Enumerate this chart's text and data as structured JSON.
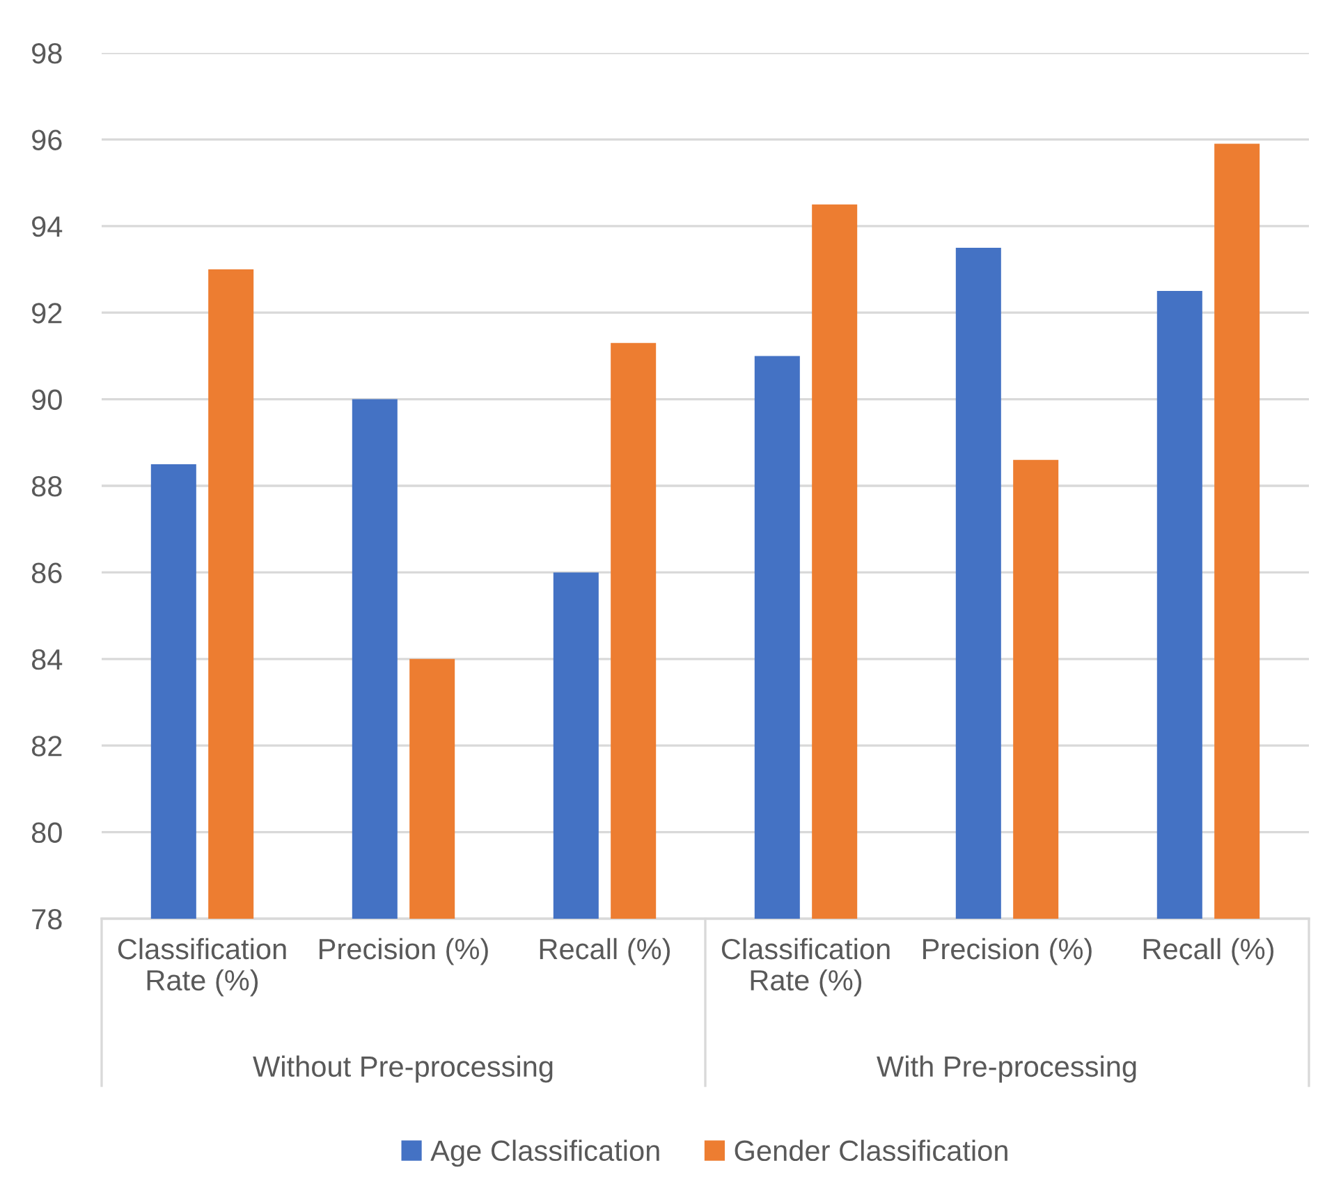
{
  "chart_data": {
    "type": "bar",
    "categories": [
      "Classification\nRate (%)",
      "Precision (%)",
      "Recall (%)",
      "Classification\nRate (%)",
      "Precision (%)",
      "Recall (%)"
    ],
    "series": [
      {
        "name": "Age Classification",
        "color": "#4472c4",
        "values": [
          88.5,
          90,
          86,
          91,
          93.5,
          92.5
        ]
      },
      {
        "name": "Gender Classification",
        "color": "#ed7d31",
        "values": [
          93,
          84,
          91.3,
          94.5,
          88.6,
          95.9
        ]
      }
    ],
    "annotations": [
      "Without Pre-processing",
      "With Pre-processing"
    ],
    "ylim": [
      78,
      98
    ],
    "yticks": [
      78,
      80,
      82,
      84,
      86,
      88,
      90,
      92,
      94,
      96,
      98
    ],
    "grid": "y",
    "legend": "bottom"
  }
}
